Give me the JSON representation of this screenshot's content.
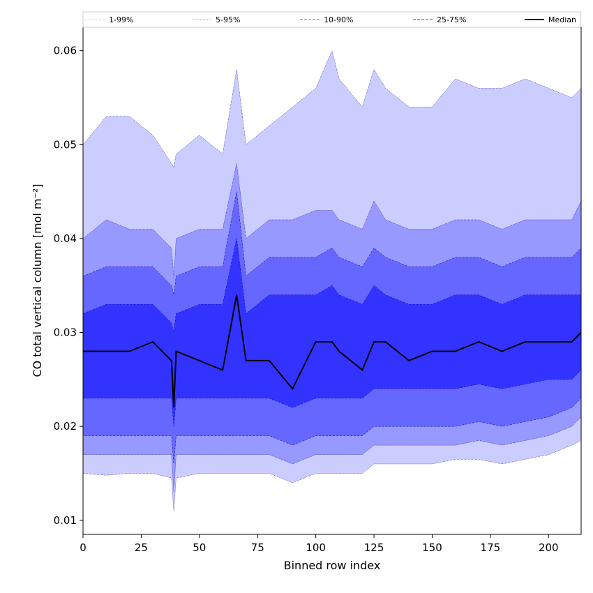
{
  "chart_data": {
    "type": "area",
    "xlabel": "Binned row index",
    "ylabel": "CO total vertical column [mol m⁻²]",
    "xlim": [
      0,
      214
    ],
    "ylim": [
      0.0085,
      0.0625
    ],
    "x_ticks": [
      0,
      25,
      50,
      75,
      100,
      125,
      150,
      175,
      200
    ],
    "x_tick_labels": [
      "0",
      "25",
      "50",
      "75",
      "100",
      "125",
      "150",
      "175",
      "200"
    ],
    "y_ticks": [
      0.01,
      0.02,
      0.03,
      0.04,
      0.05,
      0.06
    ],
    "y_tick_labels": [
      "0.01",
      "0.02",
      "0.03",
      "0.04",
      "0.05",
      "0.06"
    ],
    "grid": false,
    "legend_position": "top",
    "x": [
      0,
      10,
      20,
      30,
      38,
      39,
      40,
      50,
      60,
      66,
      70,
      80,
      90,
      100,
      107,
      110,
      120,
      125,
      130,
      140,
      150,
      160,
      170,
      180,
      190,
      200,
      210,
      214
    ],
    "bands": [
      {
        "name": "1-99%",
        "color": "#cccdff",
        "upper": [
          0.05,
          0.053,
          0.053,
          0.051,
          0.048,
          0.0476,
          0.049,
          0.051,
          0.049,
          0.058,
          0.05,
          0.052,
          0.054,
          0.056,
          0.06,
          0.057,
          0.054,
          0.058,
          0.056,
          0.054,
          0.054,
          0.057,
          0.056,
          0.056,
          0.057,
          0.056,
          0.055,
          0.056
        ],
        "lower": [
          0.015,
          0.0148,
          0.015,
          0.015,
          0.0145,
          0.011,
          0.0145,
          0.015,
          0.015,
          0.015,
          0.015,
          0.015,
          0.014,
          0.015,
          0.015,
          0.015,
          0.015,
          0.016,
          0.016,
          0.016,
          0.016,
          0.0165,
          0.0165,
          0.016,
          0.0165,
          0.017,
          0.018,
          0.0185
        ]
      },
      {
        "name": "5-95%",
        "color": "#9899ff",
        "upper": [
          0.04,
          0.042,
          0.041,
          0.041,
          0.039,
          0.036,
          0.04,
          0.041,
          0.041,
          0.048,
          0.04,
          0.042,
          0.042,
          0.043,
          0.043,
          0.042,
          0.041,
          0.044,
          0.042,
          0.041,
          0.041,
          0.042,
          0.042,
          0.041,
          0.042,
          0.042,
          0.042,
          0.044
        ],
        "lower": [
          0.017,
          0.017,
          0.017,
          0.017,
          0.017,
          0.013,
          0.017,
          0.017,
          0.017,
          0.017,
          0.017,
          0.017,
          0.016,
          0.017,
          0.017,
          0.017,
          0.017,
          0.018,
          0.018,
          0.018,
          0.018,
          0.018,
          0.0185,
          0.018,
          0.0185,
          0.019,
          0.02,
          0.021
        ]
      },
      {
        "name": "10-90%",
        "color": "#6667ff",
        "upper": [
          0.036,
          0.037,
          0.037,
          0.037,
          0.035,
          0.034,
          0.036,
          0.037,
          0.037,
          0.045,
          0.036,
          0.038,
          0.038,
          0.038,
          0.039,
          0.038,
          0.037,
          0.039,
          0.038,
          0.037,
          0.037,
          0.038,
          0.038,
          0.037,
          0.038,
          0.038,
          0.038,
          0.039
        ],
        "lower": [
          0.019,
          0.019,
          0.019,
          0.019,
          0.019,
          0.016,
          0.019,
          0.019,
          0.019,
          0.019,
          0.019,
          0.019,
          0.018,
          0.019,
          0.019,
          0.019,
          0.019,
          0.02,
          0.02,
          0.02,
          0.02,
          0.02,
          0.0205,
          0.02,
          0.0205,
          0.021,
          0.022,
          0.023
        ]
      },
      {
        "name": "25-75%",
        "color": "#3333ff",
        "upper": [
          0.032,
          0.033,
          0.033,
          0.033,
          0.031,
          0.03,
          0.032,
          0.033,
          0.033,
          0.04,
          0.032,
          0.034,
          0.034,
          0.034,
          0.035,
          0.034,
          0.033,
          0.035,
          0.034,
          0.033,
          0.033,
          0.034,
          0.034,
          0.033,
          0.034,
          0.034,
          0.034,
          0.034
        ],
        "lower": [
          0.023,
          0.023,
          0.023,
          0.023,
          0.023,
          0.02,
          0.023,
          0.023,
          0.023,
          0.023,
          0.023,
          0.023,
          0.022,
          0.023,
          0.023,
          0.023,
          0.023,
          0.024,
          0.024,
          0.024,
          0.024,
          0.024,
          0.0245,
          0.024,
          0.0245,
          0.025,
          0.025,
          0.026
        ]
      }
    ],
    "median": {
      "name": "Median",
      "color": "#000000",
      "values": [
        0.028,
        0.028,
        0.028,
        0.029,
        0.027,
        0.022,
        0.028,
        0.027,
        0.026,
        0.034,
        0.027,
        0.027,
        0.024,
        0.029,
        0.029,
        0.028,
        0.026,
        0.029,
        0.029,
        0.027,
        0.028,
        0.028,
        0.029,
        0.028,
        0.029,
        0.029,
        0.029,
        0.03
      ]
    },
    "legend": [
      {
        "label": "1-99%",
        "color": "#cccdff",
        "style": "dotted"
      },
      {
        "label": "5-95%",
        "color": "#9899ff",
        "style": "dotted"
      },
      {
        "label": "10-90%",
        "color": "#6667ff",
        "style": "dashed"
      },
      {
        "label": "25-75%",
        "color": "#3333ff",
        "style": "dashed"
      },
      {
        "label": "Median",
        "color": "#000000",
        "style": "solid"
      }
    ]
  }
}
